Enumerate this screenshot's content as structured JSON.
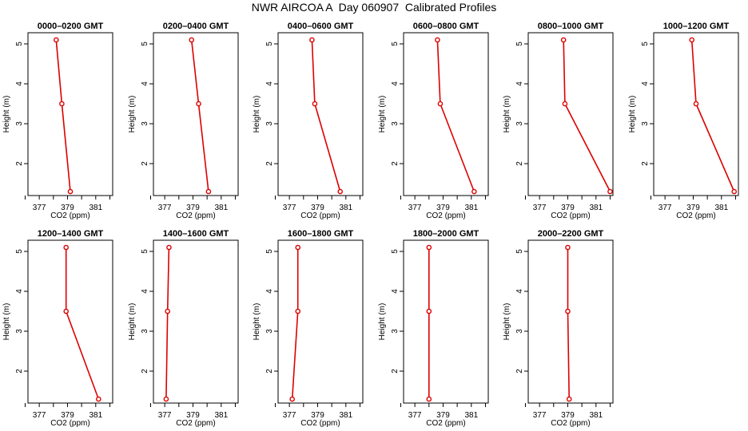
{
  "title": "NWR AIRCOA A  Day 060907  Calibrated Profiles",
  "chart_data": {
    "type": "line",
    "xlabel": "CO2 (ppm)",
    "ylabel": "Height (m)",
    "xlim": [
      376.2,
      382.2
    ],
    "ylim": [
      1.2,
      5.28
    ],
    "xticks": [
      377,
      379,
      381
    ],
    "xticks_minor": [
      376,
      378,
      380,
      382
    ],
    "yticks": [
      2,
      3,
      4,
      5
    ],
    "line_color": "#dd0000",
    "panels": [
      {
        "title": "0000–0200 GMT",
        "x": [
          378.2,
          378.6,
          379.2
        ],
        "y": [
          5.1,
          3.5,
          1.3
        ]
      },
      {
        "title": "0200–0400 GMT",
        "x": [
          378.9,
          379.4,
          380.1
        ],
        "y": [
          5.1,
          3.5,
          1.3
        ]
      },
      {
        "title": "0400–0600 GMT",
        "x": [
          378.6,
          378.8,
          380.6
        ],
        "y": [
          5.1,
          3.5,
          1.3
        ]
      },
      {
        "title": "0600–0800 GMT",
        "x": [
          378.6,
          378.8,
          381.2
        ],
        "y": [
          5.1,
          3.5,
          1.3
        ]
      },
      {
        "title": "0800–1000 GMT",
        "x": [
          378.7,
          378.8,
          382.0
        ],
        "y": [
          5.1,
          3.5,
          1.3
        ]
      },
      {
        "title": "1000–1200 GMT",
        "x": [
          378.9,
          379.2,
          381.9
        ],
        "y": [
          5.1,
          3.5,
          1.3
        ]
      },
      {
        "title": "1200–1400 GMT",
        "x": [
          378.9,
          378.9,
          381.2
        ],
        "y": [
          5.1,
          3.5,
          1.3
        ]
      },
      {
        "title": "1400–1600 GMT",
        "x": [
          377.3,
          377.2,
          377.1
        ],
        "y": [
          5.1,
          3.5,
          1.3
        ]
      },
      {
        "title": "1600–1800 GMT",
        "x": [
          377.6,
          377.6,
          377.2
        ],
        "y": [
          5.1,
          3.5,
          1.3
        ]
      },
      {
        "title": "1800–2000 GMT",
        "x": [
          378.0,
          378.0,
          378.0
        ],
        "y": [
          5.1,
          3.5,
          1.3
        ]
      },
      {
        "title": "2000–2200 GMT",
        "x": [
          379.0,
          379.0,
          379.1
        ],
        "y": [
          5.1,
          3.5,
          1.3
        ]
      }
    ]
  }
}
